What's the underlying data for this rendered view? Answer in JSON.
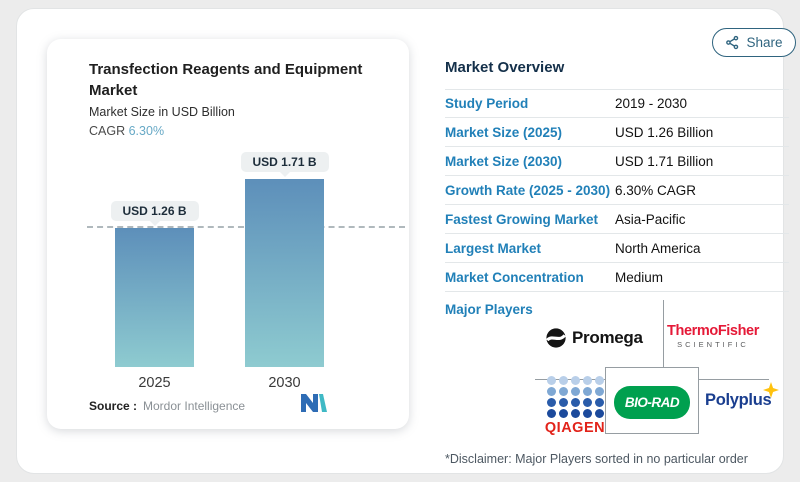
{
  "share": {
    "label": "Share"
  },
  "left_card": {
    "title": "Transfection Reagents and Equipment Market",
    "subtitle": "Market Size in USD Billion",
    "cagr_label": "CAGR",
    "cagr_value": "6.30%",
    "source_label": "Source :",
    "source_value": "Mordor Intelligence"
  },
  "chart_data": {
    "type": "bar",
    "title": "Transfection Reagents and Equipment Market",
    "ylabel": "Market Size in USD Billion",
    "cagr": "6.30%",
    "categories": [
      "2025",
      "2030"
    ],
    "values": [
      1.26,
      1.71
    ],
    "bar_labels": [
      "USD 1.26 B",
      "USD 1.71 B"
    ],
    "ylim": [
      0,
      1.71
    ],
    "grid": false,
    "reference_line_at": 1.26,
    "bar_gradient": [
      "#5d8fba",
      "#8ecbd0"
    ]
  },
  "overview": {
    "heading": "Market Overview",
    "rows": [
      {
        "label": "Study Period",
        "value": "2019 - 2030"
      },
      {
        "label": "Market Size (2025)",
        "value": "USD 1.26 Billion"
      },
      {
        "label": "Market Size (2030)",
        "value": "USD 1.71 Billion"
      },
      {
        "label": "Growth Rate (2025 - 2030)",
        "value": "6.30% CAGR"
      },
      {
        "label": "Fastest Growing Market",
        "value": "Asia-Pacific"
      },
      {
        "label": "Largest Market",
        "value": "North America"
      },
      {
        "label": "Market Concentration",
        "value": "Medium"
      }
    ],
    "major_players_label": "Major Players",
    "players": {
      "promega": "Promega",
      "thermo_line1": "ThermoFisher",
      "thermo_line2": "SCIENTIFIC",
      "qiagen": "QIAGEN",
      "qiagen_dot_rows": [
        "#b9cfe9",
        "#7fa8d4",
        "#2a5caa",
        "#1c4a9c"
      ],
      "biorad": "BIO-RAD",
      "polyplus": "Polyplus"
    },
    "disclaimer": "*Disclaimer: Major Players sorted in no particular order"
  },
  "colors": {
    "label_blue": "#2180b8",
    "heading_navy": "#14304a",
    "share_teal": "#2f647f",
    "thermo_red": "#e51937",
    "qiagen_red": "#e2231a",
    "biorad_green": "#00a04f",
    "polyplus_blue": "#1a3e8f",
    "star_yellow": "#ffc20e"
  }
}
